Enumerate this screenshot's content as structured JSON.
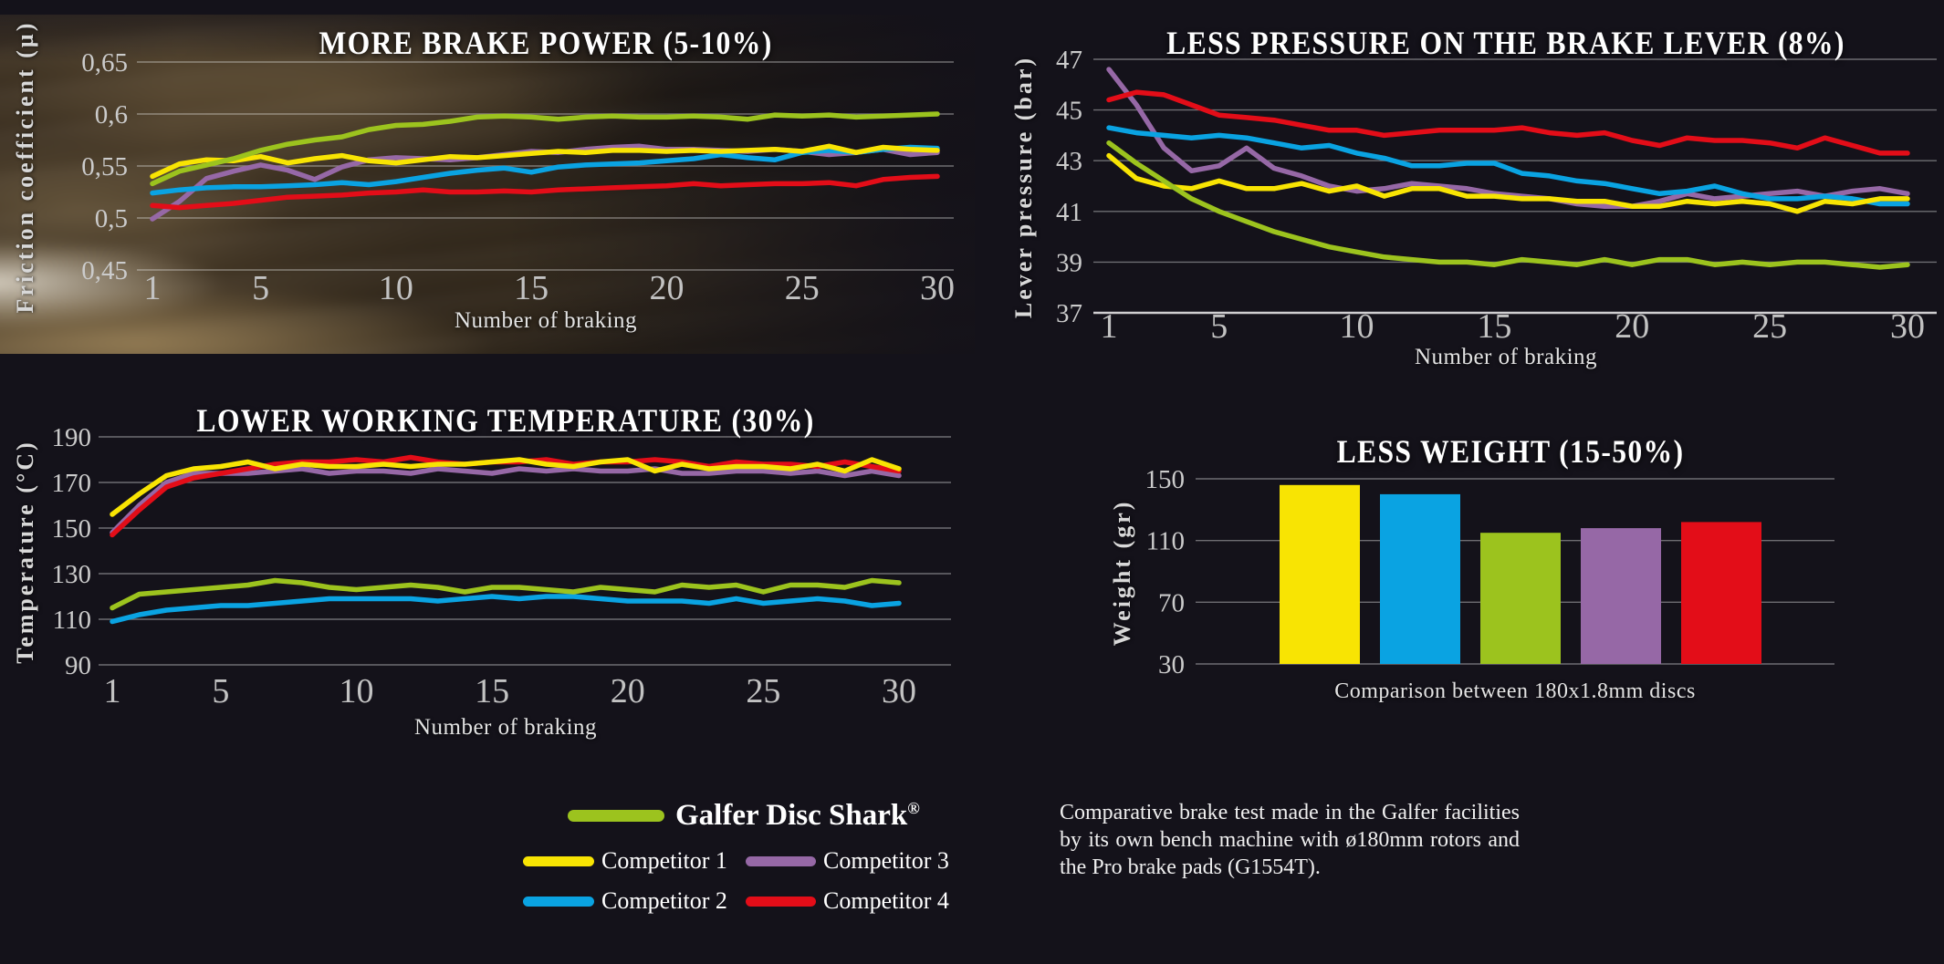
{
  "page": {
    "background": "#14121a"
  },
  "colors": {
    "galfer": "#9cc31e",
    "competitor1": "#f8e403",
    "competitor2": "#0aa3e2",
    "competitor3": "#9668a6",
    "competitor4": "#e30d18",
    "grid": "rgba(235,235,235,0.42)",
    "axis_bottom": "rgba(255,255,255,0.8)",
    "tick_text": "#c9c9c9",
    "title_text": "#ffffff"
  },
  "legend": {
    "galfer": {
      "label": "Galfer Disc Shark",
      "reg": "®",
      "color": "#9cc31e"
    },
    "items": [
      {
        "label": "Competitor 1",
        "color": "#f8e403"
      },
      {
        "label": "Competitor 3",
        "color": "#9668a6"
      },
      {
        "label": "Competitor 2",
        "color": "#0aa3e2"
      },
      {
        "label": "Competitor 4",
        "color": "#e30d18"
      }
    ]
  },
  "footnote": "Comparative brake test made in the Galfer facilities by its own bench machine with ø180mm rotors and the Pro brake pads (G1554T).",
  "chart_data": [
    {
      "type": "line",
      "title": "MORE BRAKE POWER (5-10%)",
      "xlabel": "Number of braking",
      "ylabel": "Friction coefficient (µ)",
      "ylim": [
        0.45,
        0.65
      ],
      "grid": true,
      "x_values": [
        1,
        2,
        3,
        4,
        5,
        6,
        7,
        8,
        9,
        10,
        11,
        12,
        13,
        14,
        15,
        16,
        17,
        18,
        19,
        20,
        21,
        22,
        23,
        24,
        25,
        26,
        27,
        28,
        29,
        30
      ],
      "x_ticks": [
        1,
        5,
        10,
        15,
        20,
        25,
        30
      ],
      "y_ticks": [
        {
          "v": 0.45,
          "label": "0,45"
        },
        {
          "v": 0.5,
          "label": "0,5"
        },
        {
          "v": 0.55,
          "label": "0,55"
        },
        {
          "v": 0.6,
          "label": "0,6"
        },
        {
          "v": 0.65,
          "label": "0,65"
        }
      ],
      "series": [
        {
          "name": "Competitor 3",
          "color": "#9668a6",
          "values": [
            0.499,
            0.516,
            0.538,
            0.545,
            0.551,
            0.546,
            0.537,
            0.549,
            0.556,
            0.558,
            0.557,
            0.556,
            0.558,
            0.561,
            0.564,
            0.563,
            0.566,
            0.568,
            0.569,
            0.566,
            0.566,
            0.565,
            0.564,
            0.566,
            0.564,
            0.561,
            0.563,
            0.566,
            0.561,
            0.563
          ]
        },
        {
          "name": "Competitor 4",
          "color": "#e30d18",
          "values": [
            0.512,
            0.51,
            0.512,
            0.514,
            0.517,
            0.52,
            0.521,
            0.522,
            0.524,
            0.525,
            0.527,
            0.525,
            0.525,
            0.526,
            0.525,
            0.527,
            0.528,
            0.529,
            0.53,
            0.531,
            0.533,
            0.531,
            0.532,
            0.533,
            0.533,
            0.534,
            0.531,
            0.537,
            0.539,
            0.54
          ]
        },
        {
          "name": "Competitor 2",
          "color": "#0aa3e2",
          "values": [
            0.524,
            0.527,
            0.529,
            0.53,
            0.53,
            0.531,
            0.532,
            0.534,
            0.532,
            0.535,
            0.539,
            0.543,
            0.546,
            0.548,
            0.544,
            0.549,
            0.551,
            0.552,
            0.553,
            0.555,
            0.557,
            0.561,
            0.558,
            0.556,
            0.563,
            0.565,
            0.563,
            0.566,
            0.568,
            0.567
          ]
        },
        {
          "name": "Competitor 1",
          "color": "#f8e403",
          "values": [
            0.54,
            0.552,
            0.556,
            0.555,
            0.559,
            0.553,
            0.557,
            0.56,
            0.555,
            0.553,
            0.556,
            0.559,
            0.558,
            0.56,
            0.562,
            0.564,
            0.563,
            0.565,
            0.565,
            0.564,
            0.565,
            0.564,
            0.565,
            0.566,
            0.564,
            0.569,
            0.563,
            0.568,
            0.566,
            0.565
          ]
        },
        {
          "name": "Galfer Disc Shark",
          "color": "#9cc31e",
          "values": [
            0.533,
            0.545,
            0.551,
            0.557,
            0.565,
            0.571,
            0.575,
            0.578,
            0.585,
            0.589,
            0.59,
            0.593,
            0.597,
            0.598,
            0.597,
            0.595,
            0.597,
            0.598,
            0.597,
            0.597,
            0.598,
            0.597,
            0.595,
            0.599,
            0.598,
            0.599,
            0.597,
            0.598,
            0.599,
            0.6
          ]
        }
      ]
    },
    {
      "type": "line",
      "title": "LESS PRESSURE ON THE BRAKE LEVER (8%)",
      "xlabel": "Number of braking",
      "ylabel": "Lever pressure (bar)",
      "ylim": [
        37,
        47
      ],
      "grid": true,
      "x_values": [
        1,
        2,
        3,
        4,
        5,
        6,
        7,
        8,
        9,
        10,
        11,
        12,
        13,
        14,
        15,
        16,
        17,
        18,
        19,
        20,
        21,
        22,
        23,
        24,
        25,
        26,
        27,
        28,
        29,
        30
      ],
      "x_ticks": [
        1,
        5,
        10,
        15,
        20,
        25,
        30
      ],
      "y_ticks": [
        {
          "v": 37,
          "label": "37"
        },
        {
          "v": 39,
          "label": "39"
        },
        {
          "v": 41,
          "label": "41"
        },
        {
          "v": 43,
          "label": "43"
        },
        {
          "v": 45,
          "label": "45"
        },
        {
          "v": 47,
          "label": "47"
        }
      ],
      "series": [
        {
          "name": "Competitor 3",
          "color": "#9668a6",
          "values": [
            46.6,
            45.2,
            43.5,
            42.6,
            42.8,
            43.5,
            42.7,
            42.4,
            42.0,
            41.8,
            41.9,
            42.1,
            42.0,
            41.9,
            41.7,
            41.6,
            41.5,
            41.3,
            41.2,
            41.2,
            41.4,
            41.7,
            41.5,
            41.6,
            41.7,
            41.8,
            41.6,
            41.8,
            41.9,
            41.7
          ]
        },
        {
          "name": "Competitor 4",
          "color": "#e30d18",
          "values": [
            45.4,
            45.7,
            45.6,
            45.2,
            44.8,
            44.7,
            44.6,
            44.4,
            44.2,
            44.2,
            44.0,
            44.1,
            44.2,
            44.2,
            44.2,
            44.3,
            44.1,
            44.0,
            44.1,
            43.8,
            43.6,
            43.9,
            43.8,
            43.8,
            43.7,
            43.5,
            43.9,
            43.6,
            43.3,
            43.3
          ]
        },
        {
          "name": "Competitor 2",
          "color": "#0aa3e2",
          "values": [
            44.3,
            44.1,
            44.0,
            43.9,
            44.0,
            43.9,
            43.7,
            43.5,
            43.6,
            43.3,
            43.1,
            42.8,
            42.8,
            42.9,
            42.9,
            42.5,
            42.4,
            42.2,
            42.1,
            41.9,
            41.7,
            41.8,
            42.0,
            41.7,
            41.5,
            41.5,
            41.6,
            41.5,
            41.3,
            41.3
          ]
        },
        {
          "name": "Competitor 1",
          "color": "#f8e403",
          "values": [
            43.2,
            42.3,
            42.0,
            41.9,
            42.2,
            41.9,
            41.9,
            42.1,
            41.8,
            42.0,
            41.6,
            41.9,
            41.9,
            41.6,
            41.6,
            41.5,
            41.5,
            41.4,
            41.4,
            41.2,
            41.2,
            41.4,
            41.3,
            41.4,
            41.3,
            41.0,
            41.4,
            41.3,
            41.5,
            41.5
          ]
        },
        {
          "name": "Galfer Disc Shark",
          "color": "#9cc31e",
          "values": [
            43.7,
            42.9,
            42.2,
            41.5,
            41.0,
            40.6,
            40.2,
            39.9,
            39.6,
            39.4,
            39.2,
            39.1,
            39.0,
            39.0,
            38.9,
            39.1,
            39.0,
            38.9,
            39.1,
            38.9,
            39.1,
            39.1,
            38.9,
            39.0,
            38.9,
            39.0,
            39.0,
            38.9,
            38.8,
            38.9
          ]
        }
      ]
    },
    {
      "type": "line",
      "title": "LOWER WORKING TEMPERATURE (30%)",
      "xlabel": "Number of braking",
      "ylabel": "Temperature (°C)",
      "ylim": [
        90,
        190
      ],
      "grid": true,
      "x_values": [
        1,
        2,
        3,
        4,
        5,
        6,
        7,
        8,
        9,
        10,
        11,
        12,
        13,
        14,
        15,
        16,
        17,
        18,
        19,
        20,
        21,
        22,
        23,
        24,
        25,
        26,
        27,
        28,
        29,
        30
      ],
      "x_ticks": [
        1,
        5,
        10,
        15,
        20,
        25,
        30
      ],
      "y_ticks": [
        {
          "v": 90,
          "label": "90"
        },
        {
          "v": 110,
          "label": "110"
        },
        {
          "v": 130,
          "label": "130"
        },
        {
          "v": 150,
          "label": "150"
        },
        {
          "v": 170,
          "label": "170"
        },
        {
          "v": 190,
          "label": "190"
        }
      ],
      "series": [
        {
          "name": "Competitor 3",
          "color": "#9668a6",
          "values": [
            148,
            160,
            170,
            174,
            174,
            174,
            175,
            176,
            174,
            175,
            175,
            174,
            176,
            175,
            174,
            176,
            175,
            176,
            175,
            175,
            176,
            174,
            174,
            175,
            175,
            174,
            175,
            173,
            175,
            173
          ]
        },
        {
          "name": "Competitor 4",
          "color": "#e30d18",
          "values": [
            147,
            158,
            168,
            172,
            174,
            176,
            178,
            179,
            179,
            180,
            179,
            181,
            179,
            178,
            179,
            179,
            180,
            178,
            179,
            179,
            180,
            179,
            177,
            179,
            178,
            178,
            177,
            179,
            177,
            175
          ]
        },
        {
          "name": "Competitor 2",
          "color": "#0aa3e2",
          "values": [
            109,
            112,
            114,
            115,
            116,
            116,
            117,
            118,
            119,
            119,
            119,
            119,
            118,
            119,
            120,
            119,
            120,
            120,
            119,
            118,
            118,
            118,
            117,
            119,
            117,
            118,
            119,
            118,
            116,
            117
          ]
        },
        {
          "name": "Competitor 1",
          "color": "#f8e403",
          "values": [
            156,
            165,
            173,
            176,
            177,
            179,
            176,
            178,
            177,
            177,
            178,
            177,
            178,
            178,
            179,
            180,
            178,
            177,
            179,
            180,
            175,
            178,
            176,
            177,
            177,
            176,
            178,
            175,
            180,
            176
          ]
        },
        {
          "name": "Galfer Disc Shark",
          "color": "#9cc31e",
          "values": [
            115,
            121,
            122,
            123,
            124,
            125,
            127,
            126,
            124,
            123,
            124,
            125,
            124,
            122,
            124,
            124,
            123,
            122,
            124,
            123,
            122,
            125,
            124,
            125,
            122,
            125,
            125,
            124,
            127,
            126
          ]
        }
      ]
    },
    {
      "type": "bar",
      "title": "LESS WEIGHT (15-50%)",
      "xlabel": "Comparison between 180x1.8mm discs",
      "ylabel": "Weight (gr)",
      "ylim": [
        30,
        150
      ],
      "grid": true,
      "y_ticks": [
        {
          "v": 30,
          "label": "30"
        },
        {
          "v": 70,
          "label": "70"
        },
        {
          "v": 110,
          "label": "110"
        },
        {
          "v": 150,
          "label": "150"
        }
      ],
      "bars": [
        {
          "name": "Competitor 1",
          "color": "#f8e403",
          "value": 146
        },
        {
          "name": "Competitor 2",
          "color": "#0aa3e2",
          "value": 140
        },
        {
          "name": "Galfer Disc Shark",
          "color": "#9cc31e",
          "value": 115
        },
        {
          "name": "Competitor 3",
          "color": "#9668a6",
          "value": 118
        },
        {
          "name": "Competitor 4",
          "color": "#e30d18",
          "value": 122
        }
      ]
    }
  ]
}
